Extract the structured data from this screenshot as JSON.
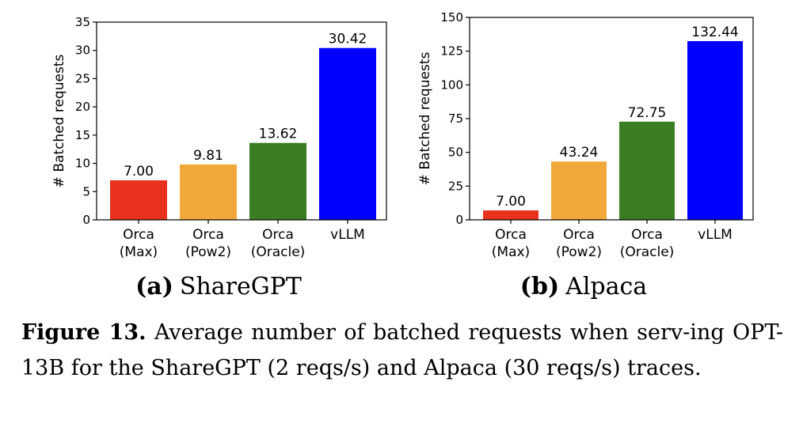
{
  "chart_data": [
    {
      "type": "bar",
      "id": "a",
      "subtitle_label": "(a)",
      "subtitle": "ShareGPT",
      "ylabel": "# Batched requests",
      "ylim": [
        0,
        35
      ],
      "yticks": [
        0,
        5,
        10,
        15,
        20,
        25,
        30,
        35
      ],
      "categories": [
        [
          "Orca",
          "(Max)"
        ],
        [
          "Orca",
          "(Pow2)"
        ],
        [
          "Orca",
          "(Oracle)"
        ],
        [
          "vLLM"
        ]
      ],
      "values": [
        7.0,
        9.81,
        13.62,
        30.42
      ],
      "value_labels": [
        "7.00",
        "9.81",
        "13.62",
        "30.42"
      ],
      "colors": [
        "#e8321e",
        "#f2a93b",
        "#3a7d22",
        "#0000ff"
      ]
    },
    {
      "type": "bar",
      "id": "b",
      "subtitle_label": "(b)",
      "subtitle": "Alpaca",
      "ylabel": "# Batched requests",
      "ylim": [
        0,
        150
      ],
      "yticks": [
        0,
        25,
        50,
        75,
        100,
        125,
        150
      ],
      "categories": [
        [
          "Orca",
          "(Max)"
        ],
        [
          "Orca",
          "(Pow2)"
        ],
        [
          "Orca",
          "(Oracle)"
        ],
        [
          "vLLM"
        ]
      ],
      "values": [
        7.0,
        43.24,
        72.75,
        132.44
      ],
      "value_labels": [
        "7.00",
        "43.24",
        "72.75",
        "132.44"
      ],
      "colors": [
        "#e8321e",
        "#f2a93b",
        "#3a7d22",
        "#0000ff"
      ]
    }
  ],
  "caption": {
    "label": "Figure 13.",
    "text": "Average number of batched requests when serv-ing OPT-13B for the ShareGPT (2 reqs/s) and Alpaca (30 reqs/s) traces."
  }
}
